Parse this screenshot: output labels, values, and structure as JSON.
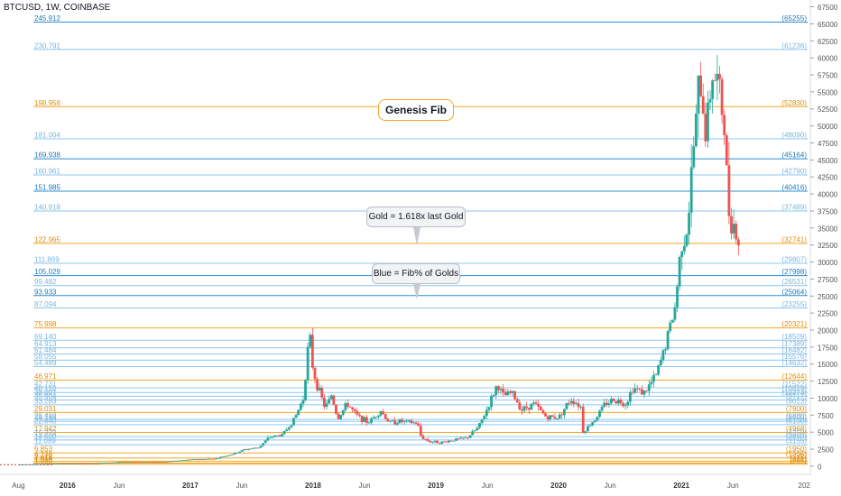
{
  "header": {
    "title": "BTCUSD, 1W, COINBASE"
  },
  "callouts": {
    "genesis": "Genesis Fib",
    "gold_note": "Gold = 1.618x last Gold",
    "blue_note": "Blue = Fib% of Golds"
  },
  "colors": {
    "gold": "#f5a623",
    "blue_dark": "#2a8fd6",
    "blue_light": "#8cc8f0",
    "up": "#26a69a",
    "down": "#ef5350",
    "axis_text": "#555555"
  },
  "chart_data": {
    "type": "candlestick",
    "symbol": "BTCUSD",
    "timeframe": "1W",
    "exchange": "COINBASE",
    "ylim": [
      -1200,
      68500
    ],
    "y_ticks": [
      0,
      2500,
      5000,
      7500,
      10000,
      12500,
      15000,
      17500,
      20000,
      22500,
      25000,
      27500,
      30000,
      32500,
      35000,
      37500,
      40000,
      42500,
      45000,
      47500,
      50000,
      52500,
      55000,
      57500,
      60000,
      62500,
      65000,
      67500
    ],
    "x_ticks": [
      {
        "t": 2015.6,
        "label": "Aug"
      },
      {
        "t": 2016.0,
        "label": "2016"
      },
      {
        "t": 2016.42,
        "label": "Jun"
      },
      {
        "t": 2017.0,
        "label": "2017"
      },
      {
        "t": 2017.42,
        "label": "Jun"
      },
      {
        "t": 2018.0,
        "label": "2018"
      },
      {
        "t": 2018.42,
        "label": "Jun"
      },
      {
        "t": 2019.0,
        "label": "2019"
      },
      {
        "t": 2019.42,
        "label": "Jun"
      },
      {
        "t": 2020.0,
        "label": "2020"
      },
      {
        "t": 2020.42,
        "label": "Jun"
      },
      {
        "t": 2021.0,
        "label": "2021"
      },
      {
        "t": 2021.42,
        "label": "Jun"
      },
      {
        "t": 2022.0,
        "label": "202"
      }
    ],
    "levels": [
      {
        "left": "245.912",
        "right": "(65255)",
        "value": 65255,
        "kind": "blue"
      },
      {
        "left": "230.791",
        "right": "(61236)",
        "value": 61236,
        "kind": "blue-light"
      },
      {
        "left": "198.958",
        "right": "(52830)",
        "value": 52830,
        "kind": "gold"
      },
      {
        "left": "181.004",
        "right": "(48090)",
        "value": 48090,
        "kind": "blue-light"
      },
      {
        "left": "169.938",
        "right": "(45164)",
        "value": 45164,
        "kind": "blue"
      },
      {
        "left": "160.961",
        "right": "(42790)",
        "value": 42790,
        "kind": "blue-light"
      },
      {
        "left": "151.985",
        "right": "(40416)",
        "value": 40416,
        "kind": "blue"
      },
      {
        "left": "140.918",
        "right": "(37489)",
        "value": 37489,
        "kind": "blue-light"
      },
      {
        "left": "122.965",
        "right": "(32741)",
        "value": 32741,
        "kind": "gold"
      },
      {
        "left": "111.869",
        "right": "(29807)",
        "value": 29807,
        "kind": "blue-light"
      },
      {
        "left": "105.029",
        "right": "(27998)",
        "value": 27998,
        "kind": "blue"
      },
      {
        "left": "99.482",
        "right": "(26531)",
        "value": 26531,
        "kind": "blue-light"
      },
      {
        "left": "93.933",
        "right": "(25064)",
        "value": 25064,
        "kind": "blue"
      },
      {
        "left": "87.094",
        "right": "(23255)",
        "value": 23255,
        "kind": "blue-light"
      },
      {
        "left": "75.998",
        "right": "(20321)",
        "value": 20321,
        "kind": "gold"
      },
      {
        "left": "69.140",
        "right": "(18509)",
        "value": 18509,
        "kind": "blue-light"
      },
      {
        "left": "64.913",
        "right": "(17389)",
        "value": 17389,
        "kind": "blue-light"
      },
      {
        "left": "61.484",
        "right": "(16482)",
        "value": 16482,
        "kind": "blue-light"
      },
      {
        "left": "58.055",
        "right": "(15576)",
        "value": 15576,
        "kind": "blue-light"
      },
      {
        "left": "54.489",
        "right": "(14632)",
        "value": 14632,
        "kind": "blue-light"
      },
      {
        "left": "46.971",
        "right": "(12644)",
        "value": 12644,
        "kind": "gold"
      },
      {
        "left": "42.731",
        "right": "(11522)",
        "value": 11522,
        "kind": "blue-light"
      },
      {
        "left": "40.110",
        "right": "(10829)",
        "value": 10829,
        "kind": "blue-light"
      },
      {
        "left": "38.007",
        "right": "(10273)",
        "value": 10273,
        "kind": "blue-light"
      },
      {
        "left": "35.904",
        "right": "(9717)",
        "value": 9717,
        "kind": "blue-light"
      },
      {
        "left": "33.283",
        "right": "(9013)",
        "value": 9013,
        "kind": "blue-light"
      },
      {
        "left": "29.031",
        "right": "(7900)",
        "value": 7900,
        "kind": "gold"
      },
      {
        "left": "26.410",
        "right": "(6880)",
        "value": 6880,
        "kind": "blue-light"
      },
      {
        "left": "24.786",
        "right": "(6600)",
        "value": 6600,
        "kind": "blue-light"
      },
      {
        "left": "22.840",
        "right": "(6100)",
        "value": 6100,
        "kind": "blue-light"
      },
      {
        "left": "17.942",
        "right": "(4968)",
        "value": 4968,
        "kind": "gold"
      },
      {
        "left": "16.320",
        "right": "(4350)",
        "value": 4350,
        "kind": "blue-light"
      },
      {
        "left": "14.500",
        "right": "(3850)",
        "value": 3850,
        "kind": "blue-light"
      },
      {
        "left": "11.089",
        "right": "(3155)",
        "value": 3155,
        "kind": "blue-light"
      },
      {
        "left": "6.853",
        "right": "(1950)",
        "value": 1950,
        "kind": "gold"
      },
      {
        "left": "4.236",
        "right": "(1205)",
        "value": 1205,
        "kind": "gold"
      },
      {
        "left": "2.618",
        "right": "(745)",
        "value": 745,
        "kind": "gold"
      },
      {
        "left": "1.618",
        "right": "(461)",
        "value": 461,
        "kind": "gold"
      },
      {
        "left": "1.000",
        "right": "(285)",
        "value": 285,
        "kind": "gold"
      }
    ],
    "series_close": [
      [
        2015.6,
        230
      ],
      [
        2015.9,
        380
      ],
      [
        2016.2,
        420
      ],
      [
        2016.5,
        650
      ],
      [
        2016.8,
        640
      ],
      [
        2017.0,
        970
      ],
      [
        2017.2,
        1100
      ],
      [
        2017.35,
        1800
      ],
      [
        2017.45,
        2500
      ],
      [
        2017.55,
        2700
      ],
      [
        2017.65,
        4300
      ],
      [
        2017.75,
        4600
      ],
      [
        2017.85,
        7000
      ],
      [
        2017.92,
        10000
      ],
      [
        2017.97,
        19500
      ],
      [
        2018.0,
        14000
      ],
      [
        2018.05,
        11000
      ],
      [
        2018.1,
        8500
      ],
      [
        2018.15,
        10500
      ],
      [
        2018.2,
        7000
      ],
      [
        2018.28,
        9200
      ],
      [
        2018.35,
        7500
      ],
      [
        2018.45,
        6400
      ],
      [
        2018.55,
        8200
      ],
      [
        2018.62,
        6400
      ],
      [
        2018.7,
        6600
      ],
      [
        2018.85,
        6300
      ],
      [
        2018.88,
        4300
      ],
      [
        2018.95,
        3600
      ],
      [
        2019.05,
        3500
      ],
      [
        2019.15,
        3900
      ],
      [
        2019.25,
        4100
      ],
      [
        2019.35,
        5800
      ],
      [
        2019.42,
        8500
      ],
      [
        2019.5,
        12000
      ],
      [
        2019.55,
        10300
      ],
      [
        2019.62,
        10800
      ],
      [
        2019.7,
        8300
      ],
      [
        2019.8,
        9200
      ],
      [
        2019.9,
        7200
      ],
      [
        2020.0,
        7200
      ],
      [
        2020.1,
        9900
      ],
      [
        2020.18,
        8800
      ],
      [
        2020.2,
        5000
      ],
      [
        2020.3,
        7000
      ],
      [
        2020.38,
        9200
      ],
      [
        2020.45,
        9800
      ],
      [
        2020.55,
        9200
      ],
      [
        2020.6,
        11500
      ],
      [
        2020.7,
        10800
      ],
      [
        2020.8,
        13500
      ],
      [
        2020.88,
        18500
      ],
      [
        2020.95,
        23500
      ],
      [
        2021.0,
        33000
      ],
      [
        2021.05,
        35000
      ],
      [
        2021.1,
        47000
      ],
      [
        2021.15,
        57000
      ],
      [
        2021.2,
        49000
      ],
      [
        2021.25,
        58000
      ],
      [
        2021.3,
        56000
      ],
      [
        2021.35,
        50000
      ],
      [
        2021.38,
        38000
      ],
      [
        2021.42,
        36000
      ],
      [
        2021.48,
        32000
      ]
    ]
  }
}
